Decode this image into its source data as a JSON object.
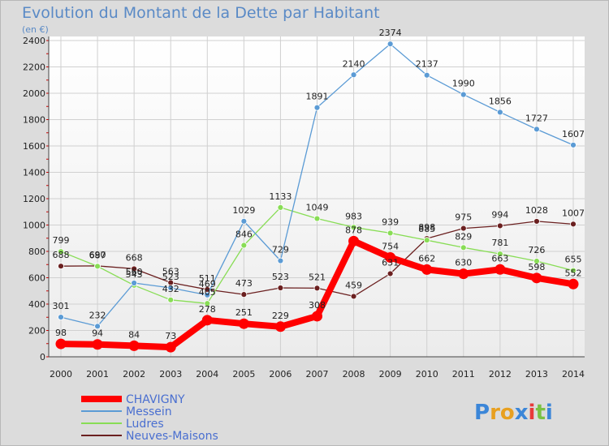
{
  "chart_data": {
    "type": "line",
    "title": "Evolution du Montant de la Dette par Habitant",
    "subtitle": "(en €)",
    "xlabel": "",
    "ylabel": "",
    "ylim": [
      0,
      2400
    ],
    "y_ticks": [
      0,
      200,
      400,
      600,
      800,
      1000,
      1200,
      1400,
      1600,
      1800,
      2000,
      2200,
      2400
    ],
    "x": [
      "2000",
      "2001",
      "2002",
      "2003",
      "2004",
      "2005",
      "2006",
      "2007",
      "2008",
      "2009",
      "2010",
      "2011",
      "2012",
      "2013",
      "2014"
    ],
    "grid": true,
    "legend_position": "bottom-left",
    "series": [
      {
        "name": "CHAVIGNY",
        "color": "#ff0000",
        "values": [
          98,
          94,
          84,
          73,
          278,
          251,
          229,
          308,
          878,
          754,
          662,
          630,
          663,
          598,
          552
        ]
      },
      {
        "name": "Messein",
        "color": "#5b9bd5",
        "values": [
          301,
          232,
          560,
          523,
          469,
          1029,
          729,
          1891,
          2140,
          2374,
          2137,
          1990,
          1856,
          1727,
          1607
        ]
      },
      {
        "name": "Ludres",
        "color": "#88dd55",
        "values": [
          799,
          687,
          543,
          432,
          405,
          846,
          1133,
          1049,
          983,
          939,
          885,
          829,
          781,
          726,
          655
        ]
      },
      {
        "name": "Neuves-Maisons",
        "color": "#6b2020",
        "values": [
          688,
          690,
          668,
          563,
          511,
          473,
          523,
          521,
          459,
          631,
          898,
          975,
          994,
          1028,
          1007
        ]
      }
    ]
  },
  "branding": {
    "logo_text": "Proxiti"
  }
}
